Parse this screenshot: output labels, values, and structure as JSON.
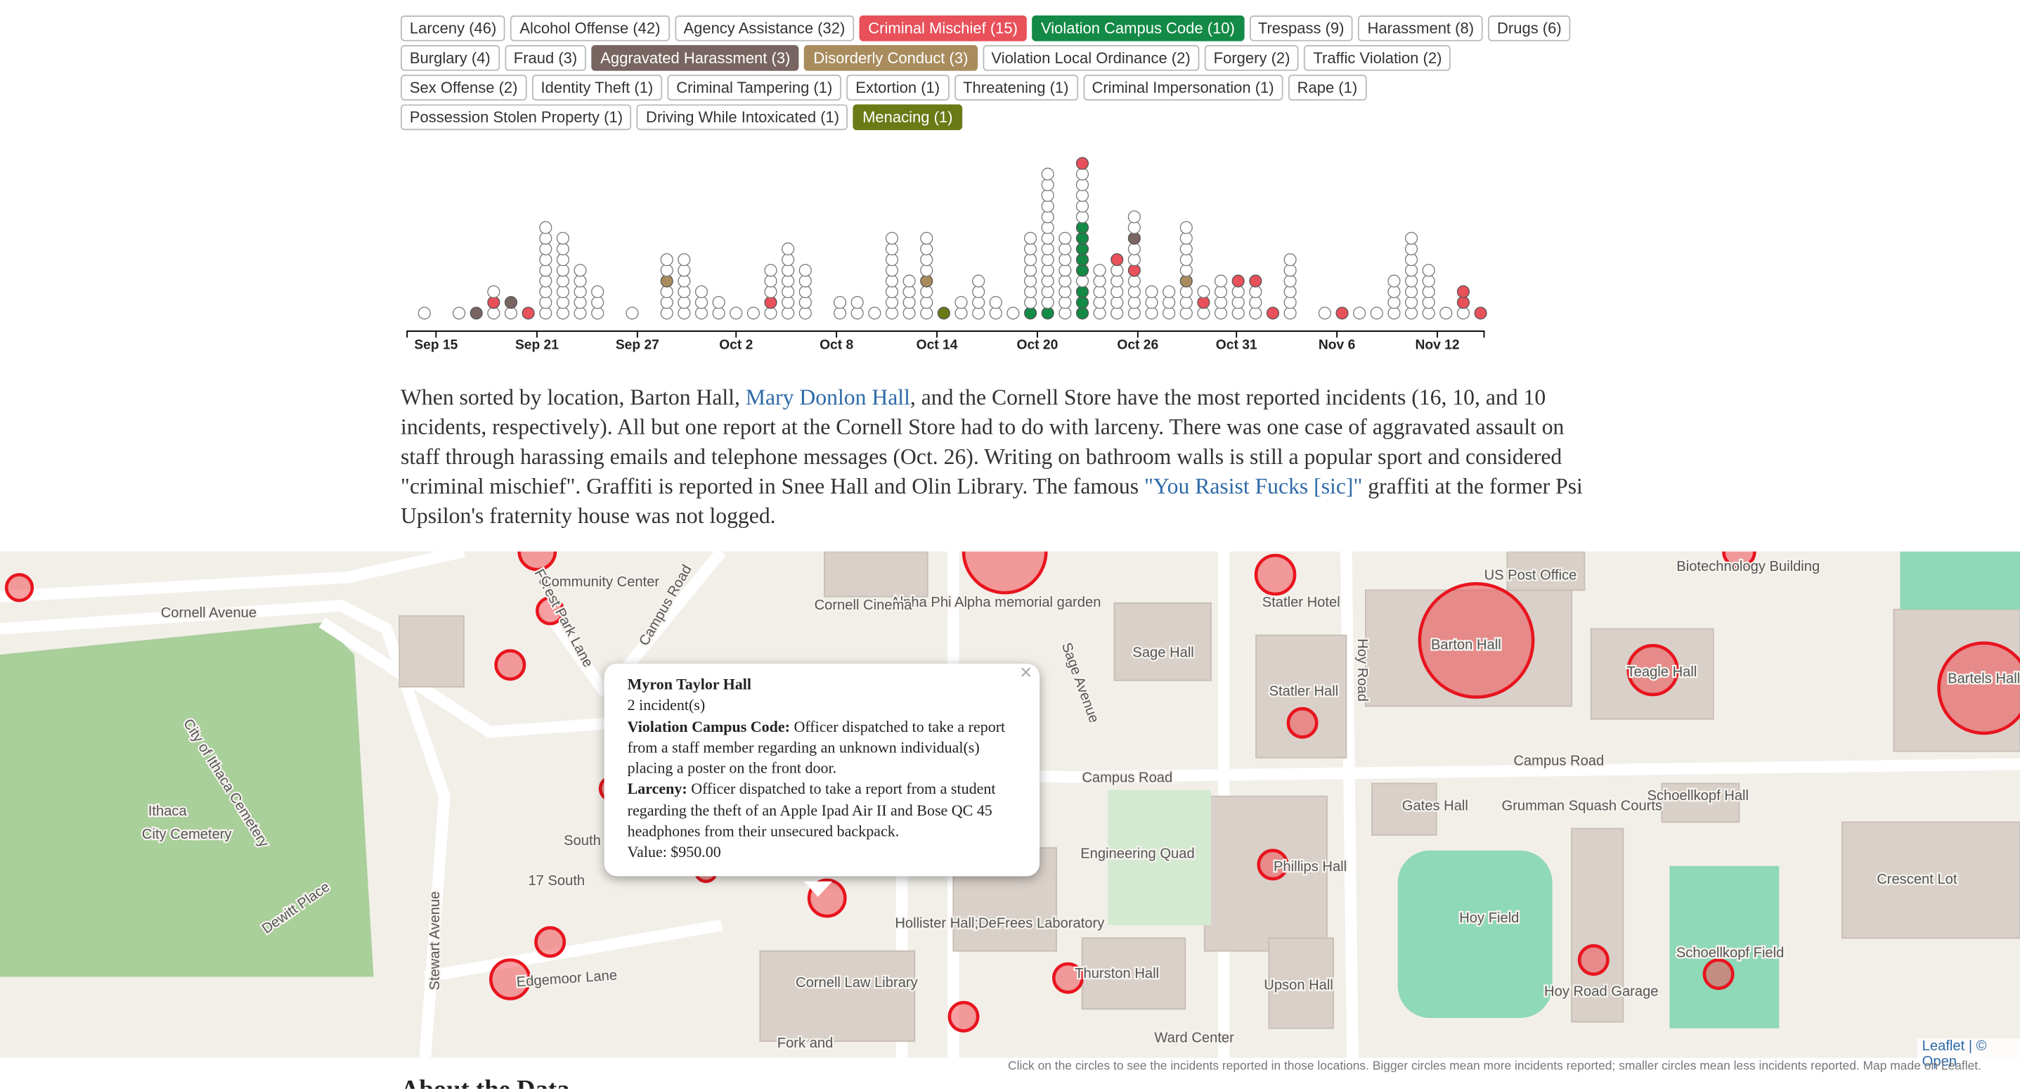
{
  "tags": [
    {
      "label": "Larceny (46)"
    },
    {
      "label": "Alcohol Offense (42)"
    },
    {
      "label": "Agency Assistance (32)"
    },
    {
      "label": "Criminal Mischief (15)",
      "color": "#e8505a"
    },
    {
      "label": "Violation Campus Code (10)",
      "color": "#138a46"
    },
    {
      "label": "Trespass (9)"
    },
    {
      "label": "Harassment (8)"
    },
    {
      "label": "Drugs (6)"
    },
    {
      "label": "Burglary (4)"
    },
    {
      "label": "Fraud (3)"
    },
    {
      "label": "Aggravated Harassment (3)",
      "color": "#786561"
    },
    {
      "label": "Disorderly Conduct (3)",
      "color": "#a98c5e"
    },
    {
      "label": "Violation Local Ordinance (2)"
    },
    {
      "label": "Forgery (2)"
    },
    {
      "label": "Traffic Violation (2)"
    },
    {
      "label": "Sex Offense (2)"
    },
    {
      "label": "Identity Theft (1)"
    },
    {
      "label": "Criminal Tampering (1)"
    },
    {
      "label": "Extortion (1)"
    },
    {
      "label": "Threatening (1)"
    },
    {
      "label": "Criminal Impersonation (1)"
    },
    {
      "label": "Rape (1)"
    },
    {
      "label": "Possession Stolen Property (1)"
    },
    {
      "label": "Driving While Intoxicated (1)"
    },
    {
      "label": "Menacing (1)",
      "color": "#6a7a16"
    }
  ],
  "chart_data": {
    "type": "dotplot",
    "xlim": [
      -1.0,
      61.2
    ],
    "xticks": [
      {
        "value": 0.67,
        "label": "Sep 15"
      },
      {
        "value": 6.5,
        "label": "Sep 21"
      },
      {
        "value": 12.3,
        "label": "Sep 27"
      },
      {
        "value": 18.0,
        "label": "Oct 2"
      },
      {
        "value": 23.8,
        "label": "Oct 8"
      },
      {
        "value": 29.6,
        "label": "Oct 14"
      },
      {
        "value": 35.4,
        "label": "Oct 20"
      },
      {
        "value": 41.2,
        "label": "Oct 26"
      },
      {
        "value": 46.9,
        "label": "Oct 31"
      },
      {
        "value": 52.7,
        "label": "Nov 6"
      },
      {
        "value": 58.5,
        "label": "Nov 12"
      }
    ],
    "columns": [
      {
        "x": 0,
        "dots": [
          null
        ]
      },
      {
        "x": 2,
        "dots": [
          null
        ]
      },
      {
        "x": 3,
        "dots": [
          10
        ]
      },
      {
        "x": 4,
        "dots": [
          null,
          3,
          null
        ]
      },
      {
        "x": 5,
        "dots": [
          null,
          10
        ]
      },
      {
        "x": 6,
        "dots": [
          3
        ]
      },
      {
        "x": 7,
        "dots": [
          null,
          null,
          null,
          null,
          null,
          null,
          null,
          null,
          null
        ]
      },
      {
        "x": 8,
        "dots": [
          null,
          null,
          null,
          null,
          null,
          null,
          null,
          null
        ]
      },
      {
        "x": 9,
        "dots": [
          null,
          null,
          null,
          null,
          null
        ]
      },
      {
        "x": 10,
        "dots": [
          null,
          null,
          null
        ]
      },
      {
        "x": 12,
        "dots": [
          null
        ]
      },
      {
        "x": 14,
        "dots": [
          null,
          null,
          null,
          11,
          null,
          null
        ]
      },
      {
        "x": 15,
        "dots": [
          null,
          null,
          null,
          null,
          null,
          null
        ]
      },
      {
        "x": 16,
        "dots": [
          null,
          null,
          null
        ]
      },
      {
        "x": 17,
        "dots": [
          null,
          null
        ]
      },
      {
        "x": 18,
        "dots": [
          null
        ]
      },
      {
        "x": 19,
        "dots": [
          null
        ]
      },
      {
        "x": 20,
        "dots": [
          null,
          3,
          null,
          null,
          null
        ]
      },
      {
        "x": 21,
        "dots": [
          null,
          null,
          null,
          null,
          null,
          null,
          null
        ]
      },
      {
        "x": 22,
        "dots": [
          null,
          null,
          null,
          null,
          null
        ]
      },
      {
        "x": 24,
        "dots": [
          null,
          null
        ]
      },
      {
        "x": 25,
        "dots": [
          null,
          null
        ]
      },
      {
        "x": 26,
        "dots": [
          null
        ]
      },
      {
        "x": 27,
        "dots": [
          null,
          null,
          null,
          null,
          null,
          null,
          null,
          null
        ]
      },
      {
        "x": 28,
        "dots": [
          null,
          null,
          null,
          null
        ]
      },
      {
        "x": 29,
        "dots": [
          null,
          null,
          null,
          11,
          null,
          null,
          null,
          null
        ]
      },
      {
        "x": 30,
        "dots": [
          24
        ]
      },
      {
        "x": 31,
        "dots": [
          null,
          null
        ]
      },
      {
        "x": 32,
        "dots": [
          null,
          null,
          null,
          null
        ]
      },
      {
        "x": 33,
        "dots": [
          null,
          null
        ]
      },
      {
        "x": 34,
        "dots": [
          null
        ]
      },
      {
        "x": 35,
        "dots": [
          4,
          null,
          null,
          null,
          null,
          null,
          null,
          null
        ]
      },
      {
        "x": 36,
        "dots": [
          4,
          null,
          null,
          null,
          null,
          null,
          null,
          null,
          null,
          null,
          null,
          null,
          null,
          null
        ]
      },
      {
        "x": 37,
        "dots": [
          null,
          null,
          null,
          null,
          null,
          null,
          null,
          null
        ]
      },
      {
        "x": 38,
        "dots": [
          4,
          4,
          4,
          null,
          4,
          4,
          4,
          4,
          4,
          null,
          null,
          null,
          null,
          null,
          3
        ]
      },
      {
        "x": 39,
        "dots": [
          null,
          null,
          null,
          null,
          null
        ]
      },
      {
        "x": 40,
        "dots": [
          null,
          null,
          null,
          null,
          null,
          3
        ]
      },
      {
        "x": 41,
        "dots": [
          null,
          null,
          null,
          null,
          3,
          null,
          null,
          10,
          null,
          null
        ]
      },
      {
        "x": 42,
        "dots": [
          null,
          null,
          null
        ]
      },
      {
        "x": 43,
        "dots": [
          null,
          null,
          null
        ]
      },
      {
        "x": 44,
        "dots": [
          null,
          null,
          null,
          11,
          null,
          null,
          null,
          null,
          null
        ]
      },
      {
        "x": 45,
        "dots": [
          null,
          3,
          null
        ]
      },
      {
        "x": 46,
        "dots": [
          null,
          null,
          null,
          null
        ]
      },
      {
        "x": 47,
        "dots": [
          null,
          null,
          null,
          3
        ]
      },
      {
        "x": 48,
        "dots": [
          null,
          null,
          null,
          3
        ]
      },
      {
        "x": 49,
        "dots": [
          3
        ]
      },
      {
        "x": 50,
        "dots": [
          null,
          null,
          null,
          null,
          null,
          null
        ]
      },
      {
        "x": 52,
        "dots": [
          null
        ]
      },
      {
        "x": 53,
        "dots": [
          3
        ]
      },
      {
        "x": 54,
        "dots": [
          null
        ]
      },
      {
        "x": 55,
        "dots": [
          null
        ]
      },
      {
        "x": 56,
        "dots": [
          null,
          null,
          null,
          null
        ]
      },
      {
        "x": 57,
        "dots": [
          null,
          null,
          null,
          null,
          null,
          null,
          null,
          null
        ]
      },
      {
        "x": 58,
        "dots": [
          null,
          null,
          null,
          null,
          null
        ]
      },
      {
        "x": 59,
        "dots": [
          null
        ]
      },
      {
        "x": 60,
        "dots": [
          null,
          3,
          3
        ]
      },
      {
        "x": 61,
        "dots": [
          3
        ]
      }
    ]
  },
  "paragraph": [
    {
      "text": "When sorted by location, Barton Hall, "
    },
    {
      "text": "Mary Donlon Hall",
      "link": true
    },
    {
      "text": ", and the Cornell Store have the most reported incidents (16, 10, and 10 incidents, respectively). All but one report at the Cornell Store had to do with larceny. There was one case of aggravated assault on staff through harassing emails and telephone messages (Oct. 26). Writing on bathroom walls is still a popular sport and considered \"criminal mischief\". Graffiti is reported in Snee Hall and Olin Library. The famous "
    },
    {
      "text": "\"You Rasist Fucks [sic]\"",
      "link": true
    },
    {
      "text": " graffiti at the former Psi Upsilon's fraternity house was not logged."
    }
  ],
  "map": {
    "labels": [
      "Cornell Avenue",
      "City of Ithaca Cemetery",
      "Ithaca",
      "City Cemetery",
      "Campus Road",
      "Forest Park Lane",
      "Community Center",
      "Stewart Avenue",
      "Edgemoor Lane",
      "17 South",
      "Dewitt Place",
      "Sage Hall",
      "Statler Hotel",
      "Statler Hall",
      "Barton Hall",
      "Teagle Hall",
      "Bartels Hall",
      "Campus Road",
      "Campus Road",
      "Gates Hall",
      "Grumman Squash Courts",
      "Schoellkopf Hall",
      "Hoy Field",
      "Schoellkopf Field",
      "Crescent Lot",
      "Hoy Road Garage",
      "Upson Hall",
      "Thurston Hall",
      "Hollister Hall;DeFrees Laboratory",
      "Cornell Law Library",
      "Phillips Hall",
      "Engineering Quad",
      "Sage Avenue",
      "Hoy Road",
      "Alpha Phi Alpha memorial garden",
      "Cornell Cinema",
      "US Post Office",
      "Biotechnology Building",
      "Ward Center",
      "Fork and",
      "South"
    ],
    "attribution": "Leaflet | © Open",
    "popup": {
      "close": "×",
      "title": "Myron Taylor Hall",
      "count": "2 incident(s)",
      "entries": [
        {
          "label": "Violation Campus Code:",
          "text": " Officer dispatched to take a report from a staff member regarding an unknown individual(s) placing a poster on the front door."
        },
        {
          "label": "Larceny:",
          "text": " Officer dispatched to take a report from a student regarding the theft of an Apple Ipad Air II and Bose QC 45 headphones from their unsecured backpack."
        }
      ],
      "value": "Value: $950.00"
    },
    "caption": "Click on the circles to see the incidents reported in those locations. Bigger circles mean more incidents reported; smaller circles mean less incidents reported. Map made on Leaflet."
  },
  "next_heading": "About the Data"
}
